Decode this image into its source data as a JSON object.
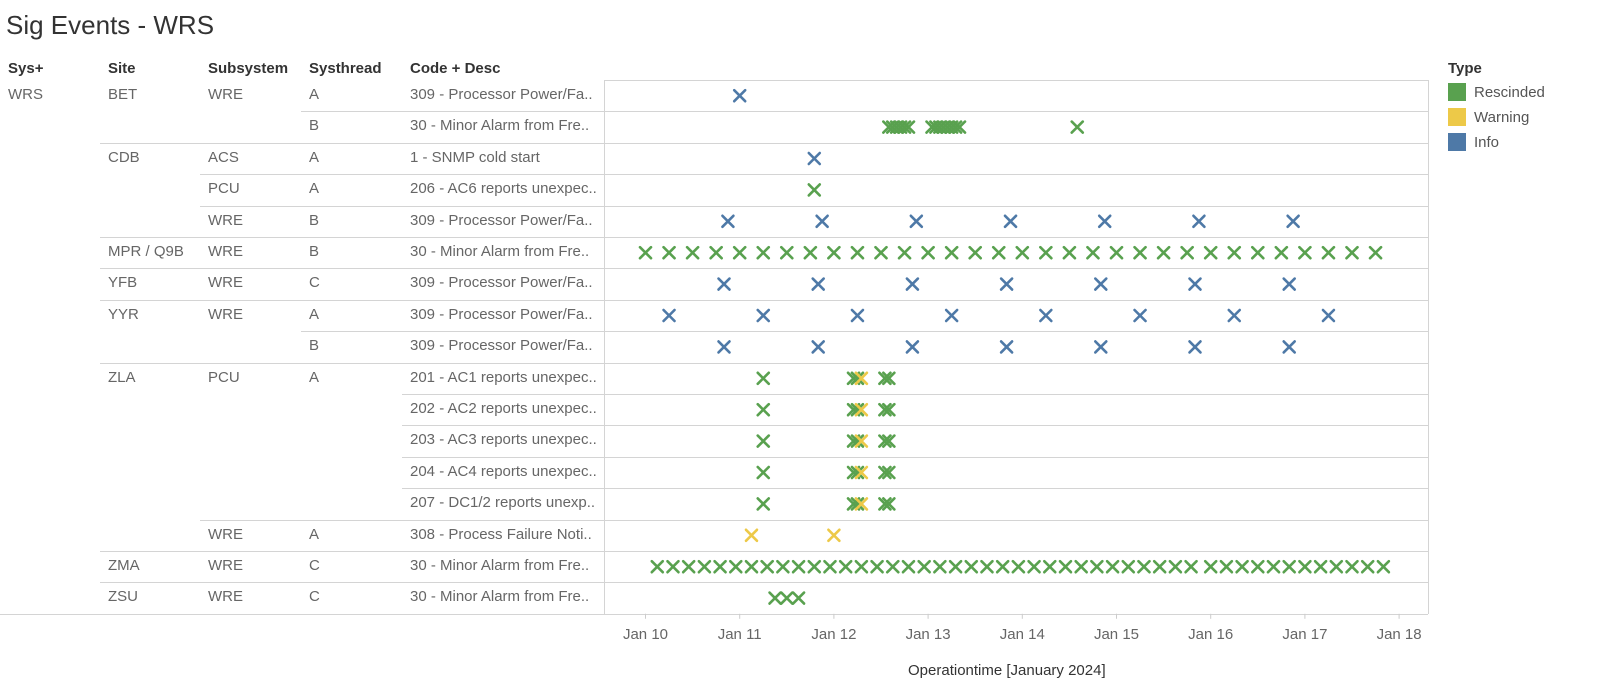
{
  "title": "Sig Events - WRS",
  "headers": [
    "Sys+",
    "Site",
    "Subsystem",
    "Systhread",
    "Code + Desc"
  ],
  "colors": {
    "Rescinded": "#59a14f",
    "Warning": "#edc948",
    "Info": "#4e79a7"
  },
  "legend": {
    "title": "Type",
    "items": [
      "Rescinded",
      "Warning",
      "Info"
    ]
  },
  "chart_data": {
    "type": "scatter",
    "xlabel": "Operationtime [January 2024]",
    "x_ticks": [
      "Jan 10",
      "Jan 11",
      "Jan 12",
      "Jan 13",
      "Jan 14",
      "Jan 15",
      "Jan 16",
      "Jan 17",
      "Jan 18"
    ],
    "xlim": [
      "2024-01-10",
      "2024-01-18"
    ],
    "marker": "x",
    "rows": [
      {
        "sys": "WRS",
        "site": "BET",
        "subsystem": "WRE",
        "systhread": "A",
        "code": "309 - Processor Power/Fa..",
        "events": [
          {
            "type": "Info",
            "x": [
              "2024-01-11 00:00"
            ]
          }
        ]
      },
      {
        "sys": "",
        "site": "",
        "subsystem": "",
        "systhread": "B",
        "code": "30 - Minor Alarm from Fre..",
        "events": [
          {
            "type": "Rescinded",
            "x": [
              "2024-01-12 14:00",
              "2024-01-12 15:00",
              "2024-01-12 16:00",
              "2024-01-12 17:00",
              "2024-01-12 18:00",
              "2024-01-12 19:00",
              "2024-01-13 01:00",
              "2024-01-13 02:00",
              "2024-01-13 03:00",
              "2024-01-13 04:00",
              "2024-01-13 05:00",
              "2024-01-13 06:00",
              "2024-01-13 07:00",
              "2024-01-13 08:00",
              "2024-01-14 14:00"
            ]
          }
        ]
      },
      {
        "sys": "",
        "site": "CDB",
        "subsystem": "ACS",
        "systhread": "A",
        "code": "1 - SNMP cold start",
        "events": [
          {
            "type": "Info",
            "x": [
              "2024-01-11 19:00"
            ]
          }
        ]
      },
      {
        "sys": "",
        "site": "",
        "subsystem": "PCU",
        "systhread": "A",
        "code": "206 - AC6 reports unexpec..",
        "events": [
          {
            "type": "Rescinded",
            "x": [
              "2024-01-11 19:00"
            ]
          }
        ]
      },
      {
        "sys": "",
        "site": "",
        "subsystem": "WRE",
        "systhread": "B",
        "code": "309 - Processor Power/Fa..",
        "events": [
          {
            "type": "Info",
            "x": [
              "2024-01-10 21:00",
              "2024-01-11 21:00",
              "2024-01-12 21:00",
              "2024-01-13 21:00",
              "2024-01-14 21:00",
              "2024-01-15 21:00",
              "2024-01-16 21:00"
            ]
          }
        ]
      },
      {
        "sys": "",
        "site": "MPR / Q9B",
        "subsystem": "WRE",
        "systhread": "B",
        "code": "30 - Minor Alarm from Fre..",
        "events": [
          {
            "type": "Rescinded",
            "x": [
              "2024-01-10 00:00",
              "2024-01-10 06:00",
              "2024-01-10 12:00",
              "2024-01-10 18:00",
              "2024-01-11 00:00",
              "2024-01-11 06:00",
              "2024-01-11 12:00",
              "2024-01-11 18:00",
              "2024-01-12 00:00",
              "2024-01-12 06:00",
              "2024-01-12 12:00",
              "2024-01-12 18:00",
              "2024-01-13 00:00",
              "2024-01-13 06:00",
              "2024-01-13 12:00",
              "2024-01-13 18:00",
              "2024-01-14 00:00",
              "2024-01-14 06:00",
              "2024-01-14 12:00",
              "2024-01-14 18:00",
              "2024-01-15 00:00",
              "2024-01-15 06:00",
              "2024-01-15 12:00",
              "2024-01-15 18:00",
              "2024-01-16 00:00",
              "2024-01-16 06:00",
              "2024-01-16 12:00",
              "2024-01-16 18:00",
              "2024-01-17 00:00",
              "2024-01-17 06:00",
              "2024-01-17 12:00",
              "2024-01-17 18:00"
            ]
          }
        ]
      },
      {
        "sys": "",
        "site": "YFB",
        "subsystem": "WRE",
        "systhread": "C",
        "code": "309 - Processor Power/Fa..",
        "events": [
          {
            "type": "Info",
            "x": [
              "2024-01-10 20:00",
              "2024-01-11 20:00",
              "2024-01-12 20:00",
              "2024-01-13 20:00",
              "2024-01-14 20:00",
              "2024-01-15 20:00",
              "2024-01-16 20:00"
            ]
          }
        ]
      },
      {
        "sys": "",
        "site": "YYR",
        "subsystem": "WRE",
        "systhread": "A",
        "code": "309 - Processor Power/Fa..",
        "events": [
          {
            "type": "Info",
            "x": [
              "2024-01-10 06:00",
              "2024-01-11 06:00",
              "2024-01-12 06:00",
              "2024-01-13 06:00",
              "2024-01-14 06:00",
              "2024-01-15 06:00",
              "2024-01-16 06:00",
              "2024-01-17 06:00"
            ]
          }
        ]
      },
      {
        "sys": "",
        "site": "",
        "subsystem": "",
        "systhread": "B",
        "code": "309 - Processor Power/Fa..",
        "events": [
          {
            "type": "Info",
            "x": [
              "2024-01-10 20:00",
              "2024-01-11 20:00",
              "2024-01-12 20:00",
              "2024-01-13 20:00",
              "2024-01-14 20:00",
              "2024-01-15 20:00",
              "2024-01-16 20:00"
            ]
          }
        ]
      },
      {
        "sys": "",
        "site": "ZLA",
        "subsystem": "PCU",
        "systhread": "A",
        "code": "201 - AC1 reports unexpec..",
        "events": [
          {
            "type": "Rescinded",
            "x": [
              "2024-01-11 06:00",
              "2024-01-12 05:00",
              "2024-01-12 06:00",
              "2024-01-12 13:00",
              "2024-01-12 14:00"
            ]
          },
          {
            "type": "Warning",
            "x": [
              "2024-01-12 07:00"
            ]
          }
        ]
      },
      {
        "sys": "",
        "site": "",
        "subsystem": "",
        "systhread": "",
        "code": "202 - AC2 reports unexpec..",
        "events": [
          {
            "type": "Rescinded",
            "x": [
              "2024-01-11 06:00",
              "2024-01-12 05:00",
              "2024-01-12 06:00",
              "2024-01-12 13:00",
              "2024-01-12 14:00"
            ]
          },
          {
            "type": "Warning",
            "x": [
              "2024-01-12 07:00"
            ]
          }
        ]
      },
      {
        "sys": "",
        "site": "",
        "subsystem": "",
        "systhread": "",
        "code": "203 - AC3 reports unexpec..",
        "events": [
          {
            "type": "Rescinded",
            "x": [
              "2024-01-11 06:00",
              "2024-01-12 05:00",
              "2024-01-12 06:00",
              "2024-01-12 13:00",
              "2024-01-12 14:00"
            ]
          },
          {
            "type": "Warning",
            "x": [
              "2024-01-12 07:00"
            ]
          }
        ]
      },
      {
        "sys": "",
        "site": "",
        "subsystem": "",
        "systhread": "",
        "code": "204 - AC4 reports unexpec..",
        "events": [
          {
            "type": "Rescinded",
            "x": [
              "2024-01-11 06:00",
              "2024-01-12 05:00",
              "2024-01-12 06:00",
              "2024-01-12 13:00",
              "2024-01-12 14:00"
            ]
          },
          {
            "type": "Warning",
            "x": [
              "2024-01-12 07:00"
            ]
          }
        ]
      },
      {
        "sys": "",
        "site": "",
        "subsystem": "",
        "systhread": "",
        "code": "207 - DC1/2 reports unexp..",
        "events": [
          {
            "type": "Rescinded",
            "x": [
              "2024-01-11 06:00",
              "2024-01-12 05:00",
              "2024-01-12 06:00",
              "2024-01-12 13:00",
              "2024-01-12 14:00"
            ]
          },
          {
            "type": "Warning",
            "x": [
              "2024-01-12 07:00"
            ]
          }
        ]
      },
      {
        "sys": "",
        "site": "",
        "subsystem": "WRE",
        "systhread": "A",
        "code": "308 - Process Failure Noti..",
        "events": [
          {
            "type": "Warning",
            "x": [
              "2024-01-11 03:00",
              "2024-01-12 00:00"
            ]
          }
        ]
      },
      {
        "sys": "",
        "site": "ZMA",
        "subsystem": "WRE",
        "systhread": "C",
        "code": "30 - Minor Alarm from Fre..",
        "events": [
          {
            "type": "Rescinded",
            "x": [
              "2024-01-10 03:00",
              "2024-01-10 07:00",
              "2024-01-10 11:00",
              "2024-01-10 15:00",
              "2024-01-10 19:00",
              "2024-01-10 23:00",
              "2024-01-11 03:00",
              "2024-01-11 07:00",
              "2024-01-11 11:00",
              "2024-01-11 15:00",
              "2024-01-11 19:00",
              "2024-01-11 23:00",
              "2024-01-12 03:00",
              "2024-01-12 07:00",
              "2024-01-12 11:00",
              "2024-01-12 15:00",
              "2024-01-12 19:00",
              "2024-01-12 23:00",
              "2024-01-13 03:00",
              "2024-01-13 07:00",
              "2024-01-13 11:00",
              "2024-01-13 15:00",
              "2024-01-13 19:00",
              "2024-01-13 23:00",
              "2024-01-14 03:00",
              "2024-01-14 07:00",
              "2024-01-14 11:00",
              "2024-01-14 15:00",
              "2024-01-14 19:00",
              "2024-01-14 23:00",
              "2024-01-15 03:00",
              "2024-01-15 07:00",
              "2024-01-15 11:00",
              "2024-01-15 15:00",
              "2024-01-15 19:00",
              "2024-01-16 00:00",
              "2024-01-16 04:00",
              "2024-01-16 08:00",
              "2024-01-16 12:00",
              "2024-01-16 16:00",
              "2024-01-16 20:00",
              "2024-01-17 00:00",
              "2024-01-17 04:00",
              "2024-01-17 08:00",
              "2024-01-17 12:00",
              "2024-01-17 16:00",
              "2024-01-17 20:00"
            ]
          }
        ]
      },
      {
        "sys": "",
        "site": "ZSU",
        "subsystem": "WRE",
        "systhread": "C",
        "code": "30 - Minor Alarm from Fre..",
        "events": [
          {
            "type": "Rescinded",
            "x": [
              "2024-01-11 09:00",
              "2024-01-11 12:00",
              "2024-01-11 15:00"
            ]
          }
        ]
      }
    ]
  }
}
